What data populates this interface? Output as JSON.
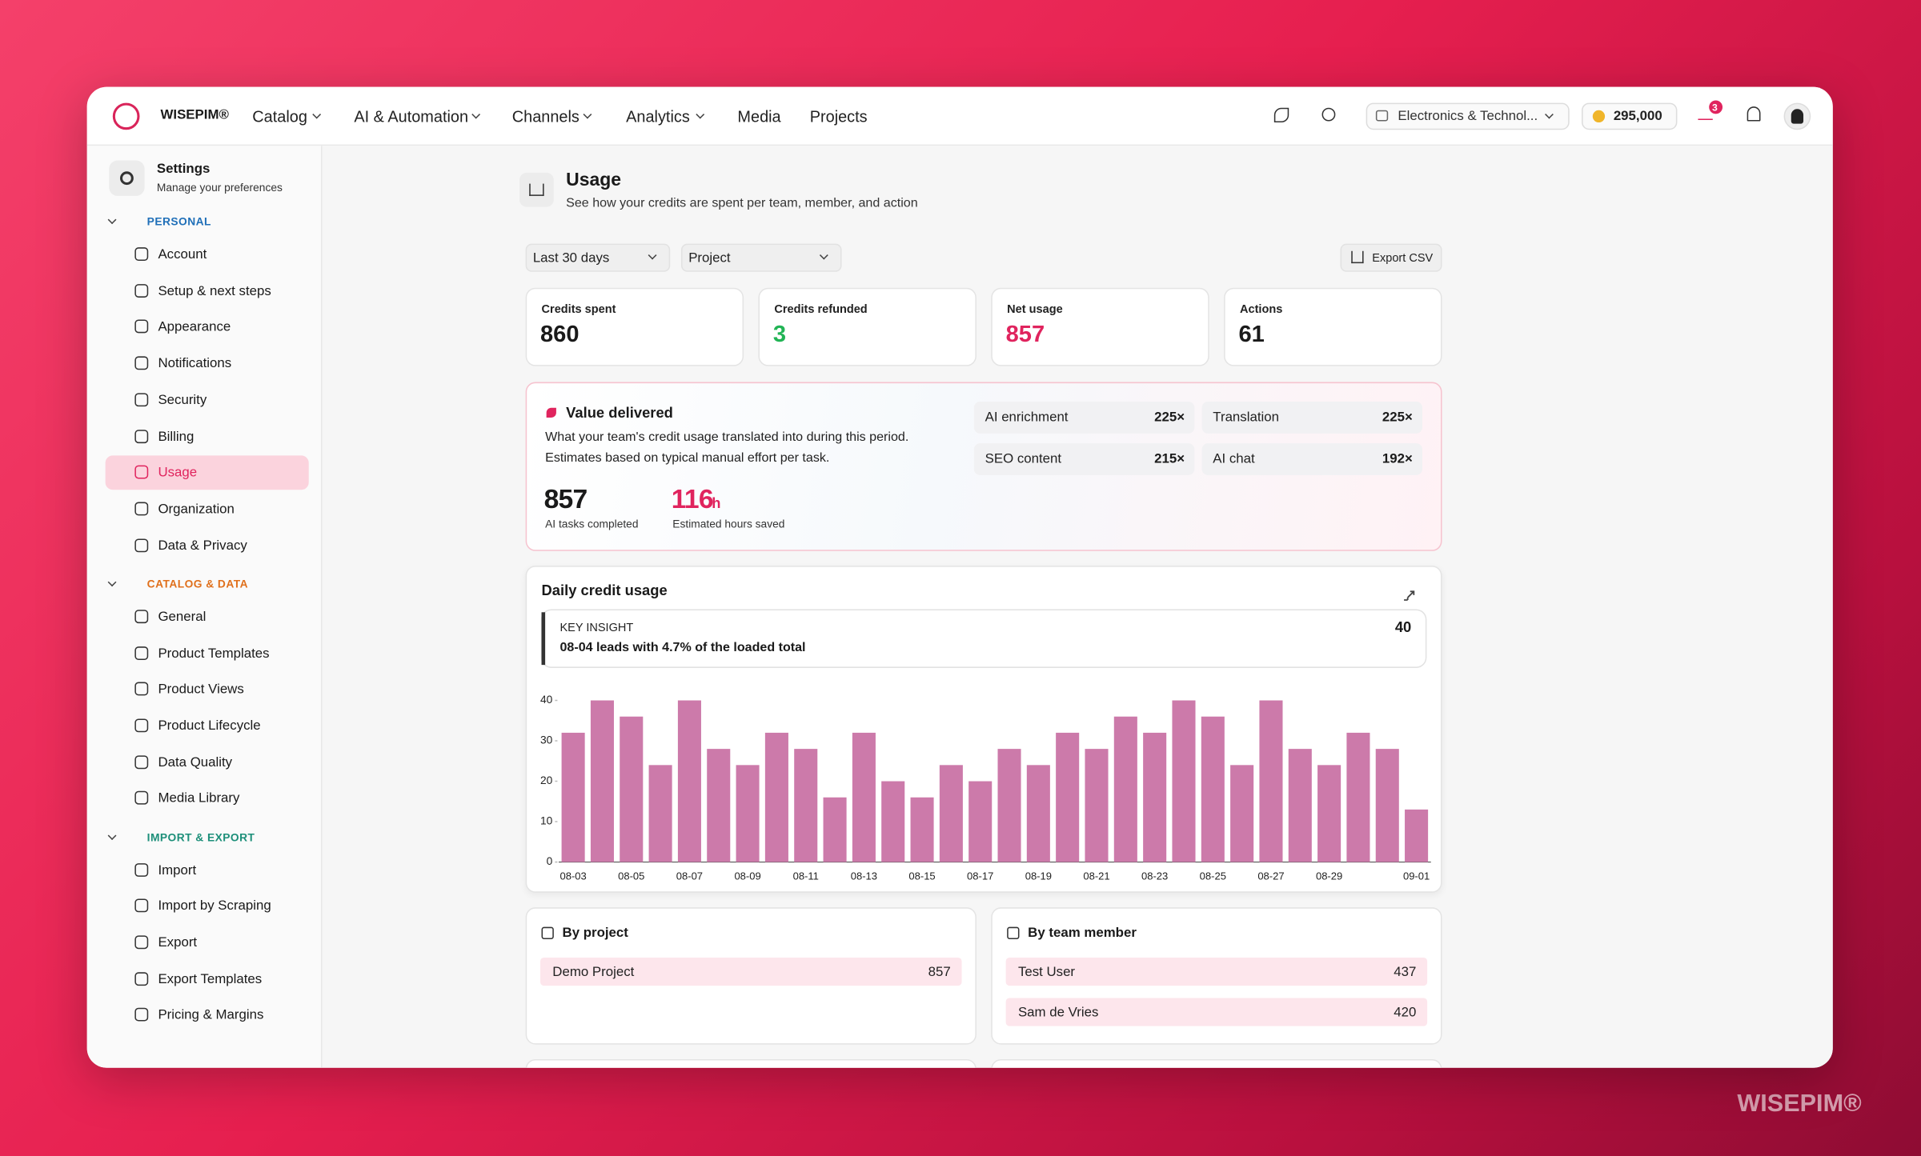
{
  "watermark": "WISEPIM®",
  "nav": {
    "brand": "WISEPIM®",
    "menu": [
      "Catalog",
      "AI & Automation",
      "Channels",
      "Analytics",
      "Media",
      "Projects"
    ],
    "workspace": "Electronics & Technol...",
    "credits": "295,000",
    "badge": "3"
  },
  "sidebar": {
    "title": "Settings",
    "subtitle": "Manage your preferences",
    "sections": [
      {
        "label": "PERSONAL",
        "color": "#1f6fb8",
        "items": [
          "Account",
          "Setup & next steps",
          "Appearance",
          "Notifications",
          "Security",
          "Billing",
          "Usage",
          "Organization",
          "Data & Privacy"
        ]
      },
      {
        "label": "CATALOG & DATA",
        "color": "#e0701c",
        "items": [
          "General",
          "Product Templates",
          "Product Views",
          "Product Lifecycle",
          "Data Quality",
          "Media Library"
        ]
      },
      {
        "label": "IMPORT & EXPORT",
        "color": "#1c8f79",
        "items": [
          "Import",
          "Import by Scraping",
          "Export",
          "Export Templates",
          "Pricing & Margins"
        ]
      }
    ]
  },
  "page": {
    "title": "Usage",
    "subtitle": "See how your credits are spent per team, member, and action",
    "filters": [
      "Last 30 days",
      "Project"
    ],
    "export": "Export CSV",
    "stats": [
      {
        "label": "Credits spent",
        "value": "860"
      },
      {
        "label": "Credits refunded",
        "value": "3"
      },
      {
        "label": "Net usage",
        "value": "857"
      },
      {
        "label": "Actions",
        "value": "61"
      }
    ],
    "value_delivered": {
      "title": "Value delivered",
      "lines": [
        "What your team's credit usage translated into during this period.",
        "Estimates based on typical manual effort per task."
      ],
      "tasks": "857",
      "tasks_label": "AI tasks completed",
      "hours": "116",
      "hours_unit": "h",
      "hours_label": "Estimated hours saved",
      "multipliers": [
        {
          "name": "AI enrichment",
          "value": "225×"
        },
        {
          "name": "Translation",
          "value": "225×"
        },
        {
          "name": "SEO content",
          "value": "215×"
        },
        {
          "name": "AI chat",
          "value": "192×"
        }
      ]
    },
    "by_project": {
      "title": "By project",
      "rows": [
        {
          "name": "Demo Project",
          "value": "857"
        }
      ]
    },
    "by_member": {
      "title": "By team member",
      "rows": [
        {
          "name": "Test User",
          "value": "437"
        },
        {
          "name": "Sam de Vries",
          "value": "420"
        }
      ]
    }
  },
  "chart_data": {
    "type": "bar",
    "title": "Daily credit usage",
    "insight_label": "KEY INSIGHT",
    "insight": "08-04 leads with 4.7% of the loaded total",
    "insight_value": "40",
    "categories": [
      "08-03",
      null,
      "08-05",
      null,
      "08-07",
      null,
      "08-09",
      null,
      "08-11",
      null,
      "08-13",
      null,
      "08-15",
      null,
      "08-17",
      null,
      "08-19",
      null,
      "08-21",
      null,
      "08-23",
      null,
      "08-25",
      null,
      "08-27",
      null,
      "08-29",
      null,
      null,
      "09-01"
    ],
    "values": [
      32,
      40,
      36,
      24,
      40,
      28,
      24,
      32,
      28,
      16,
      32,
      20,
      16,
      24,
      20,
      28,
      24,
      32,
      28,
      36,
      32,
      40,
      36,
      24,
      40,
      28,
      24,
      32,
      28,
      13
    ],
    "color": "#cc7aaa",
    "ylim": [
      0,
      40
    ],
    "yticks": [
      0,
      10,
      20,
      30,
      40
    ]
  }
}
